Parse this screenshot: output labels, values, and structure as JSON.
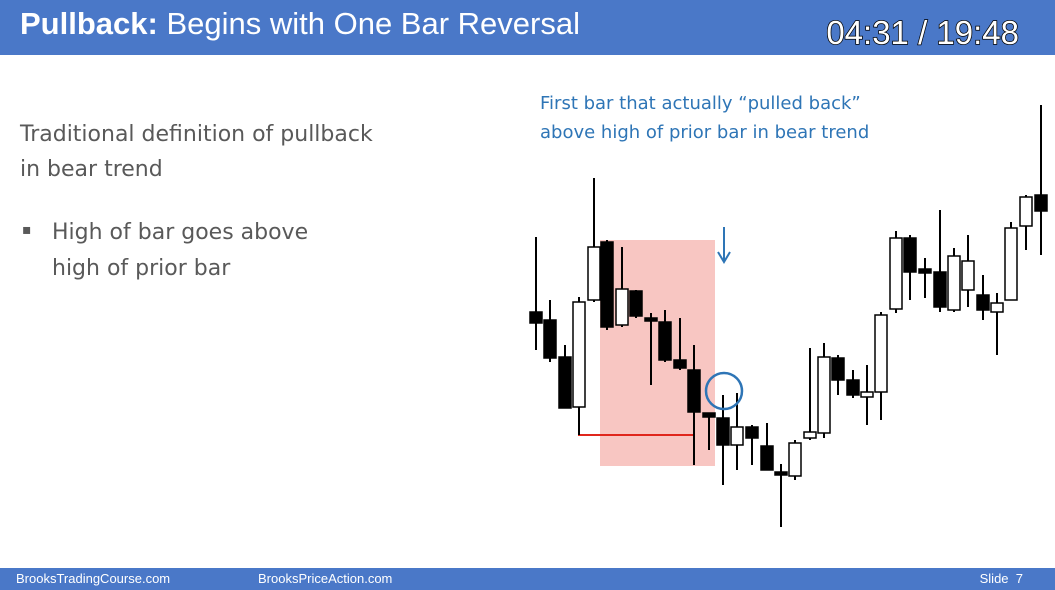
{
  "header": {
    "title_bold": "Pullback:",
    "title_rest": "Begins with One Bar Reversal",
    "timer": "04:31 / 19:48"
  },
  "body": {
    "heading_lines": [
      "Traditional definition of pullback",
      "in bear trend"
    ],
    "bullet_lines": [
      "High of bar goes above",
      "high of prior bar"
    ]
  },
  "annotation": {
    "lines": [
      "First bar that actually “pulled back”",
      "above high of prior bar in bear trend"
    ]
  },
  "footer": {
    "left": "BrooksTradingCourse.com",
    "center": "BrooksPriceAction.com",
    "right": "Slide  7"
  }
}
